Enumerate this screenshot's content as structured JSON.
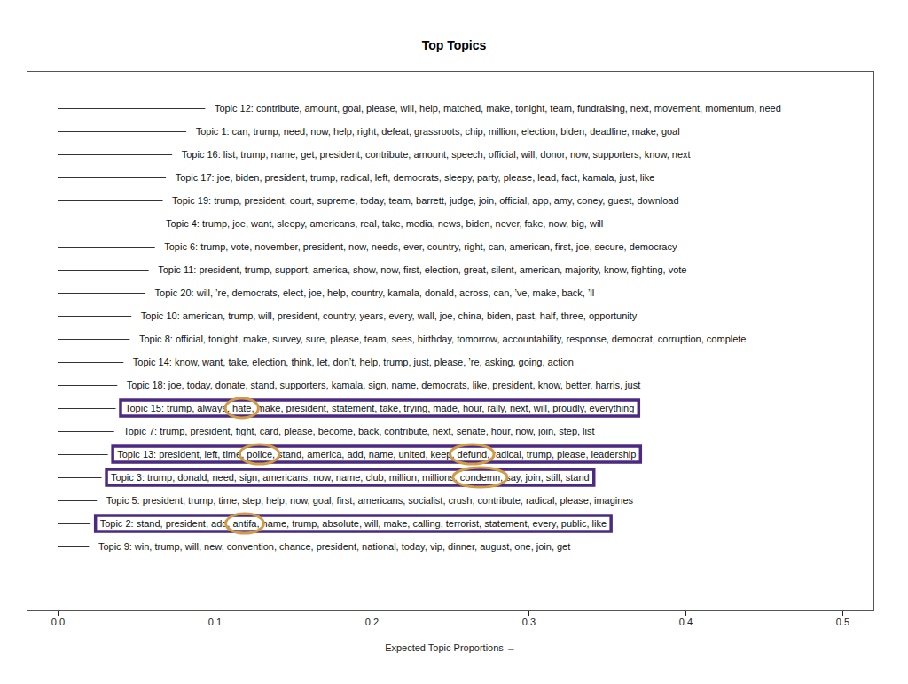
{
  "chart_data": {
    "type": "bar",
    "orientation": "horizontal",
    "title": "Top Topics",
    "xlabel": "Expected Topic Proportions",
    "categories": [
      "Topic 12: contribute, amount, goal, please, will, help, matched, make, tonight, team, fundraising, next, movement, momentum, need",
      "Topic 1: can, trump, need, now, help, right, defeat, grassroots, chip, million, election, biden, deadline, make, goal",
      "Topic 16: list, trump, name, get, president, contribute, amount, speech, official, will, donor, now, supporters, know, next",
      "Topic 17: joe, biden, president, trump, radical, left, democrats, sleepy, party, please, lead, fact, kamala, just, like",
      "Topic 19: trump, president, court, supreme, today, team, barrett, judge, join, official, app, amy, coney, guest, download",
      "Topic 4: trump, joe, want, sleepy, americans, real, take, media, news, biden, never, fake, now, big, will",
      "Topic 6: trump, vote, november, president, now, needs, ever, country, right, can, american, first, joe, secure, democracy",
      "Topic 11: president, trump, support, america, show, now, first, election, great, silent, american, majority, know, fighting, vote",
      "Topic 20: will, ’re, democrats, elect, joe, help, country, kamala, donald, across, can, ’ve, make, back, ’ll",
      "Topic 10: american, trump, will, president, country, years, every, wall, joe, china, biden, past, half, three, opportunity",
      "Topic 8: official, tonight, make, survey, sure, please, team, sees, birthday, tomorrow, accountability, response, democrat, corruption, complete",
      "Topic 14: know, want, take, election, think, let, don’t, help, trump, just, please, ’re, asking, going, action",
      "Topic 18: joe, today, donate, stand, supporters, kamala, sign, name, democrats, like, president, know, better, harris, just",
      "Topic 15: trump, always, hate, make, president, statement, take, trying, made, hour, rally, next, will, proudly, everything",
      "Topic 7: trump, president, fight, card, please, become, back, contribute, next, senate, hour, now, join, step, list",
      "Topic 13: president, left, time, police, stand, america, add, name, united, keep, defund, radical, trump, please, leadership",
      "Topic 3: trump, donald, need, sign, americans, now, name, club, million, millions, condemn, say, join, still, stand",
      "Topic 5: president, trump, time, step, help, now, goal, first, americans, socialist, crush, contribute, radical, please, imagines",
      "Topic 2: stand, president, add, antifa, name, trump, absolute, will, make, calling, terrorist, statement, every, public, like",
      "Topic 9: win, trump, will, new, convention, chance, president, national, today, vip, dinner, august, one, join, get"
    ],
    "values": [
      0.094,
      0.082,
      0.073,
      0.069,
      0.067,
      0.063,
      0.062,
      0.058,
      0.056,
      0.047,
      0.046,
      0.042,
      0.038,
      0.037,
      0.036,
      0.032,
      0.028,
      0.025,
      0.021,
      0.02
    ],
    "color": "#333333",
    "xlim": [
      0,
      0.5
    ],
    "xticks": [
      {
        "value": 0,
        "label": "0.0"
      },
      0.1,
      0.2,
      0.3,
      0.4,
      0.5
    ],
    "highlights": [
      {
        "category": "Topic 15: trump, always, hate, make, president, statement, take, trying, made, hour, rally, next, will, proudly, everything",
        "word": "hate"
      },
      {
        "category": "Topic 13: president, left, time, police, stand, america, add, name, united, keep, defund, radical, trump, please, leadership",
        "word": "police"
      },
      {
        "category": "Topic 13: president, left, time, police, stand, america, add, name, united, keep, defund, radical, trump, please, leadership",
        "word": "defund"
      },
      {
        "category": "Topic 3: trump, donald, need, sign, americans, now, name, club, million, millions, condemn, say, join, still, stand",
        "word": "condemn"
      },
      {
        "category": "Topic 2: stand, president, add, antifa, name, trump, absolute, will, make, calling, terrorist, statement, every, public, like",
        "word": "antifa"
      }
    ]
  }
}
